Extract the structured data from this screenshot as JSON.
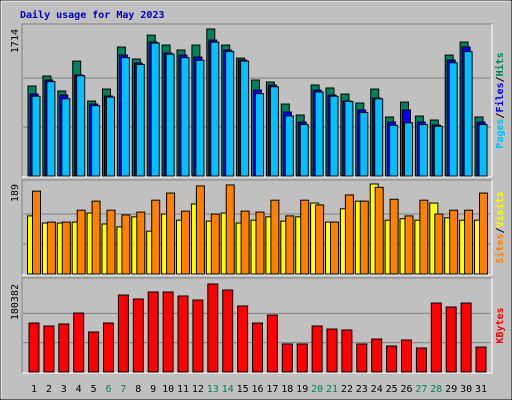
{
  "title": "Daily usage for May 2023",
  "separator": "/",
  "chart_data": [
    {
      "type": "bar",
      "ylim": [
        0,
        1714
      ],
      "yticks": [
        1714
      ],
      "series": [
        {
          "name": "Hits",
          "color": "#00805c",
          "values": [
            1049,
            1166,
            991,
            1340,
            874,
            1014,
            1504,
            1364,
            1643,
            1527,
            1469,
            1527,
            1714,
            1527,
            1375,
            1119,
            1096,
            839,
            711,
            1061,
            1026,
            956,
            851,
            1014,
            688,
            862,
            699,
            653,
            1410,
            1562,
            688
          ]
        },
        {
          "name": "Files",
          "color": "#0000ff",
          "values": [
            956,
            1119,
            944,
            1177,
            839,
            932,
            1410,
            1317,
            1562,
            1434,
            1410,
            1387,
            1585,
            1469,
            1352,
            1002,
            1061,
            746,
            629,
            1002,
            944,
            874,
            769,
            909,
            629,
            769,
            629,
            594,
            1352,
            1504,
            629
          ]
        },
        {
          "name": "Pages",
          "color": "#00c0ff",
          "values": [
            930,
            1100,
            900,
            1170,
            820,
            920,
            1380,
            1300,
            1550,
            1420,
            1380,
            1350,
            1560,
            1450,
            1340,
            960,
            1040,
            700,
            600,
            980,
            930,
            870,
            740,
            900,
            590,
            620,
            600,
            580,
            1320,
            1450,
            600
          ]
        }
      ]
    },
    {
      "type": "bar",
      "ylim": [
        0,
        189
      ],
      "yticks": [
        189
      ],
      "series": [
        {
          "name": "Visits",
          "color": "#ffff00",
          "values": [
            122,
            107,
            107,
            109,
            128,
            105,
            99,
            120,
            90,
            126,
            113,
            147,
            111,
            128,
            107,
            113,
            120,
            111,
            120,
            149,
            109,
            137,
            153,
            189,
            113,
            116,
            113,
            149,
            118,
            113,
            113
          ]
        },
        {
          "name": "Sites",
          "color": "#ff8000",
          "values": [
            174,
            109,
            109,
            134,
            153,
            134,
            124,
            130,
            155,
            170,
            132,
            185,
            126,
            187,
            132,
            130,
            155,
            122,
            155,
            145,
            109,
            166,
            153,
            182,
            157,
            122,
            155,
            126,
            134,
            134,
            170
          ]
        }
      ]
    },
    {
      "type": "bar",
      "ylim": [
        0,
        180382
      ],
      "yticks": [
        180382
      ],
      "categories": [
        "1",
        "2",
        "3",
        "4",
        "5",
        "6",
        "7",
        "8",
        "9",
        "10",
        "11",
        "12",
        "13",
        "14",
        "15",
        "16",
        "17",
        "18",
        "19",
        "20",
        "21",
        "22",
        "23",
        "24",
        "25",
        "26",
        "27",
        "28",
        "29",
        "30",
        "31"
      ],
      "category_colors": [
        "#000000",
        "#000000",
        "#000000",
        "#000000",
        "#000000",
        "#00805c",
        "#00805c",
        "#000000",
        "#000000",
        "#000000",
        "#000000",
        "#000000",
        "#00805c",
        "#00805c",
        "#000000",
        "#000000",
        "#000000",
        "#000000",
        "#000000",
        "#00805c",
        "#00805c",
        "#000000",
        "#000000",
        "#000000",
        "#000000",
        "#000000",
        "#00805c",
        "#00805c",
        "#000000",
        "#000000",
        "#000000"
      ],
      "series": [
        {
          "name": "KBytes",
          "color": "#ff0000",
          "values": [
            100440,
            94300,
            98400,
            120900,
            82000,
            100400,
            157800,
            149600,
            164000,
            164000,
            155800,
            147600,
            180382,
            168100,
            135300,
            100400,
            116800,
            57400,
            57400,
            94300,
            88100,
            86100,
            57400,
            67600,
            53300,
            65600,
            49200,
            141400,
            133200,
            141400,
            51200
          ]
        }
      ]
    }
  ]
}
